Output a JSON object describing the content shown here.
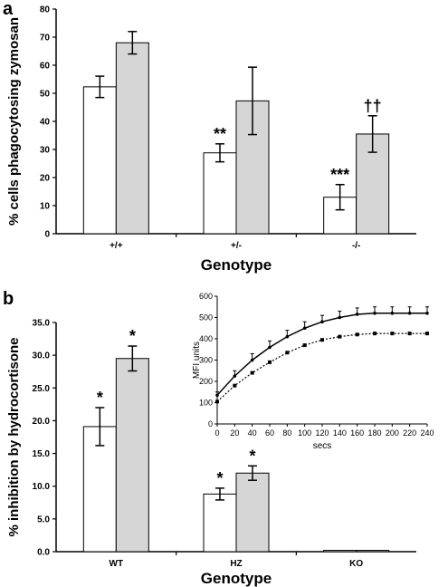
{
  "chart_data": [
    {
      "panel": "a",
      "type": "bar",
      "ylabel": "% cells phagocytosing zymosan",
      "xlabel": "Genotype",
      "ylim": [
        0,
        80
      ],
      "yticks": [
        "0",
        "10",
        "20",
        "30",
        "40",
        "50",
        "60",
        "70",
        "80"
      ],
      "categories": [
        "+/+",
        "+/-",
        "-/-"
      ],
      "series": [
        {
          "color": "#ffffff",
          "values": [
            52.3,
            28.8,
            13.0
          ],
          "errors": [
            3.8,
            3.2,
            4.5
          ],
          "annotations": [
            "",
            "**",
            "***"
          ]
        },
        {
          "color": "#d6d6d6",
          "values": [
            68.0,
            47.3,
            35.5
          ],
          "errors": [
            4.0,
            12.0,
            6.5
          ],
          "annotations": [
            "",
            "",
            "††"
          ]
        }
      ]
    },
    {
      "panel": "b",
      "type": "bar",
      "ylabel": "% inhibition by hydrocortisone",
      "xlabel": "Genotype",
      "ylim": [
        0,
        35
      ],
      "yticks": [
        "0.0",
        "5.0",
        "10.0",
        "15.0",
        "20.0",
        "25.0",
        "30.0",
        "35.0"
      ],
      "categories": [
        "WT",
        "HZ",
        "KO"
      ],
      "series": [
        {
          "color": "#ffffff",
          "values": [
            19.1,
            8.8,
            0.2
          ],
          "errors": [
            2.9,
            0.9,
            0
          ],
          "annotations": [
            "*",
            "*",
            ""
          ]
        },
        {
          "color": "#d6d6d6",
          "values": [
            29.5,
            12.0,
            0.2
          ],
          "errors": [
            1.9,
            1.1,
            0
          ],
          "annotations": [
            "*",
            "*",
            ""
          ]
        }
      ]
    },
    {
      "panel": "b-inset",
      "type": "line",
      "xlabel": "secs",
      "ylabel": "MFI units",
      "xlim": [
        0,
        240
      ],
      "ylim": [
        0,
        600
      ],
      "xticks": [
        "0",
        "20",
        "40",
        "60",
        "80",
        "100",
        "120",
        "140",
        "160",
        "180",
        "200",
        "220",
        "240"
      ],
      "yticks": [
        "0",
        "100",
        "200",
        "300",
        "400",
        "500",
        "600"
      ],
      "x": [
        0,
        20,
        40,
        60,
        80,
        100,
        120,
        140,
        160,
        180,
        200,
        220,
        240
      ],
      "series": [
        {
          "style": "solid",
          "values": [
            135,
            225,
            300,
            360,
            410,
            450,
            480,
            500,
            515,
            520,
            520,
            520,
            520
          ],
          "errors": [
            15,
            25,
            30,
            30,
            30,
            30,
            30,
            30,
            30,
            30,
            30,
            30,
            30
          ]
        },
        {
          "style": "dotted",
          "values": [
            105,
            180,
            240,
            290,
            335,
            370,
            395,
            410,
            420,
            425,
            425,
            425,
            425
          ],
          "errors": [
            0,
            0,
            0,
            0,
            0,
            0,
            0,
            0,
            0,
            0,
            0,
            0,
            0
          ]
        }
      ]
    }
  ],
  "panel_labels": [
    "a",
    "b"
  ]
}
